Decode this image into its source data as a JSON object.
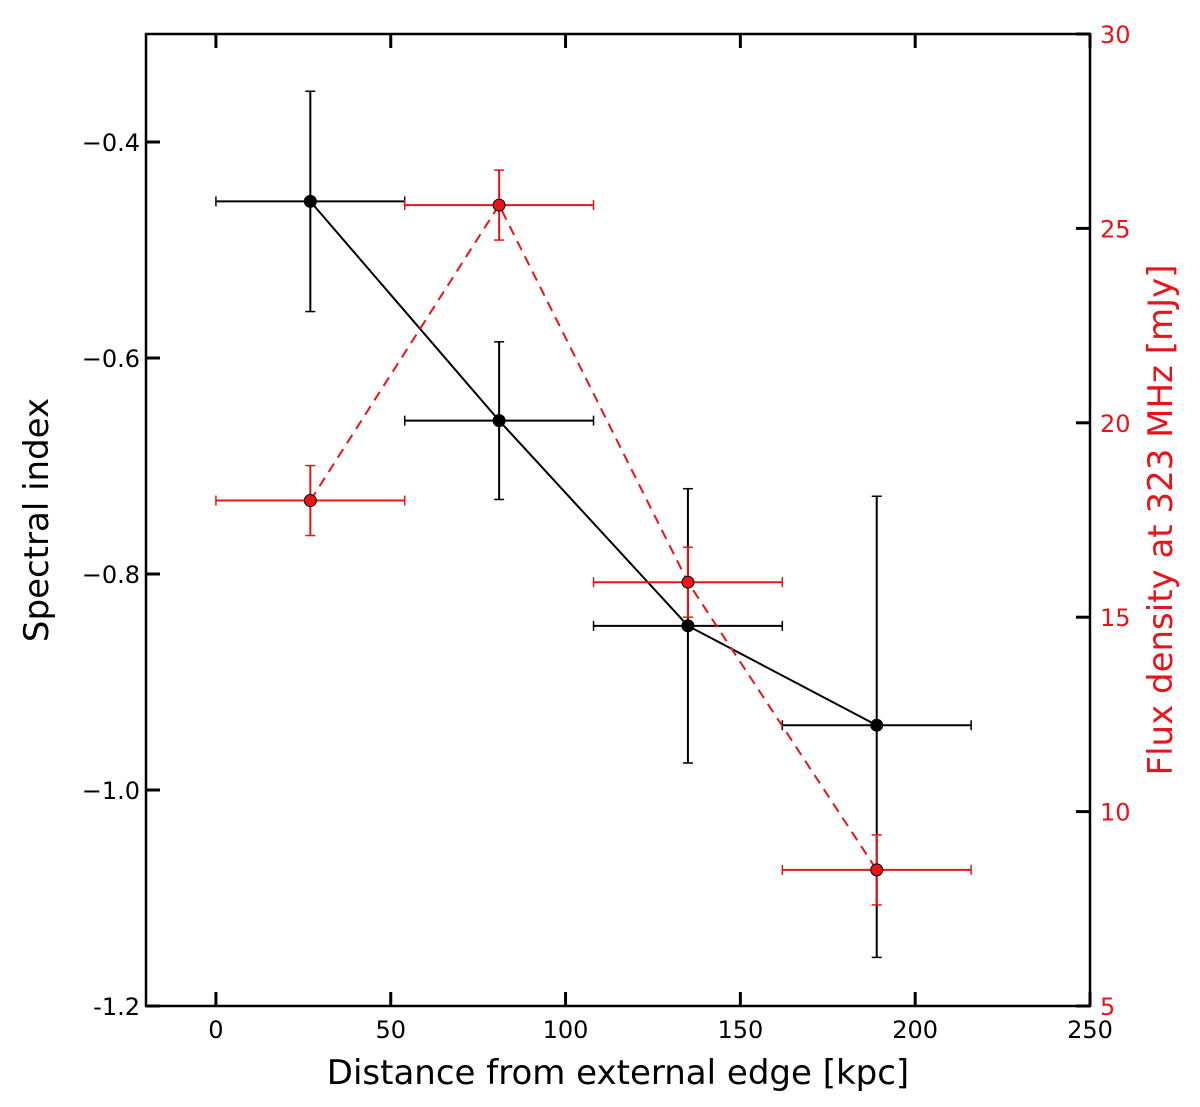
{
  "chart_data": {
    "type": "scatter",
    "title": "",
    "xlabel": "Distance from external edge [kpc]",
    "ylabel": "Spectral index",
    "y2label": "Flux density at 323 MHz [mJy]",
    "xlim": [
      -20,
      250
    ],
    "ylim": [
      -1.2,
      -0.3
    ],
    "y2lim": [
      5,
      30
    ],
    "x_ticks": [
      0,
      50,
      100,
      150,
      200,
      250
    ],
    "x_tick_labels": [
      "0",
      "50",
      "100",
      "150",
      "200",
      "250"
    ],
    "y_ticks": [
      -0.4,
      -0.6,
      -0.8,
      -1.0,
      -1.2
    ],
    "y_tick_labels": [
      "−0.4",
      "−0.6",
      "−0.8",
      "−1.0",
      "-1.2"
    ],
    "y2_ticks": [
      5,
      10,
      15,
      20,
      25,
      30
    ],
    "y2_tick_labels": [
      "5",
      "10",
      "15",
      "20",
      "25",
      "30"
    ],
    "series": [
      {
        "name": "Spectral index",
        "axis": "left",
        "color": "#000000",
        "line_style": "solid",
        "x": [
          27,
          81,
          135,
          189
        ],
        "y": [
          -0.455,
          -0.658,
          -0.848,
          -0.94
        ],
        "x_err": [
          27,
          27,
          27,
          27
        ],
        "y_err_low": [
          0.102,
          0.073,
          0.127,
          0.215
        ],
        "y_err_high": [
          0.102,
          0.073,
          0.127,
          0.212
        ]
      },
      {
        "name": "Flux density at 323 MHz",
        "axis": "right",
        "color": "#e8141a",
        "line_style": "dashed",
        "x": [
          27,
          81,
          135,
          189
        ],
        "y": [
          18.0,
          25.6,
          15.9,
          8.5
        ],
        "x_err": [
          27,
          27,
          27,
          27
        ],
        "y_err": [
          0.9,
          0.9,
          0.9,
          0.9
        ]
      }
    ]
  }
}
